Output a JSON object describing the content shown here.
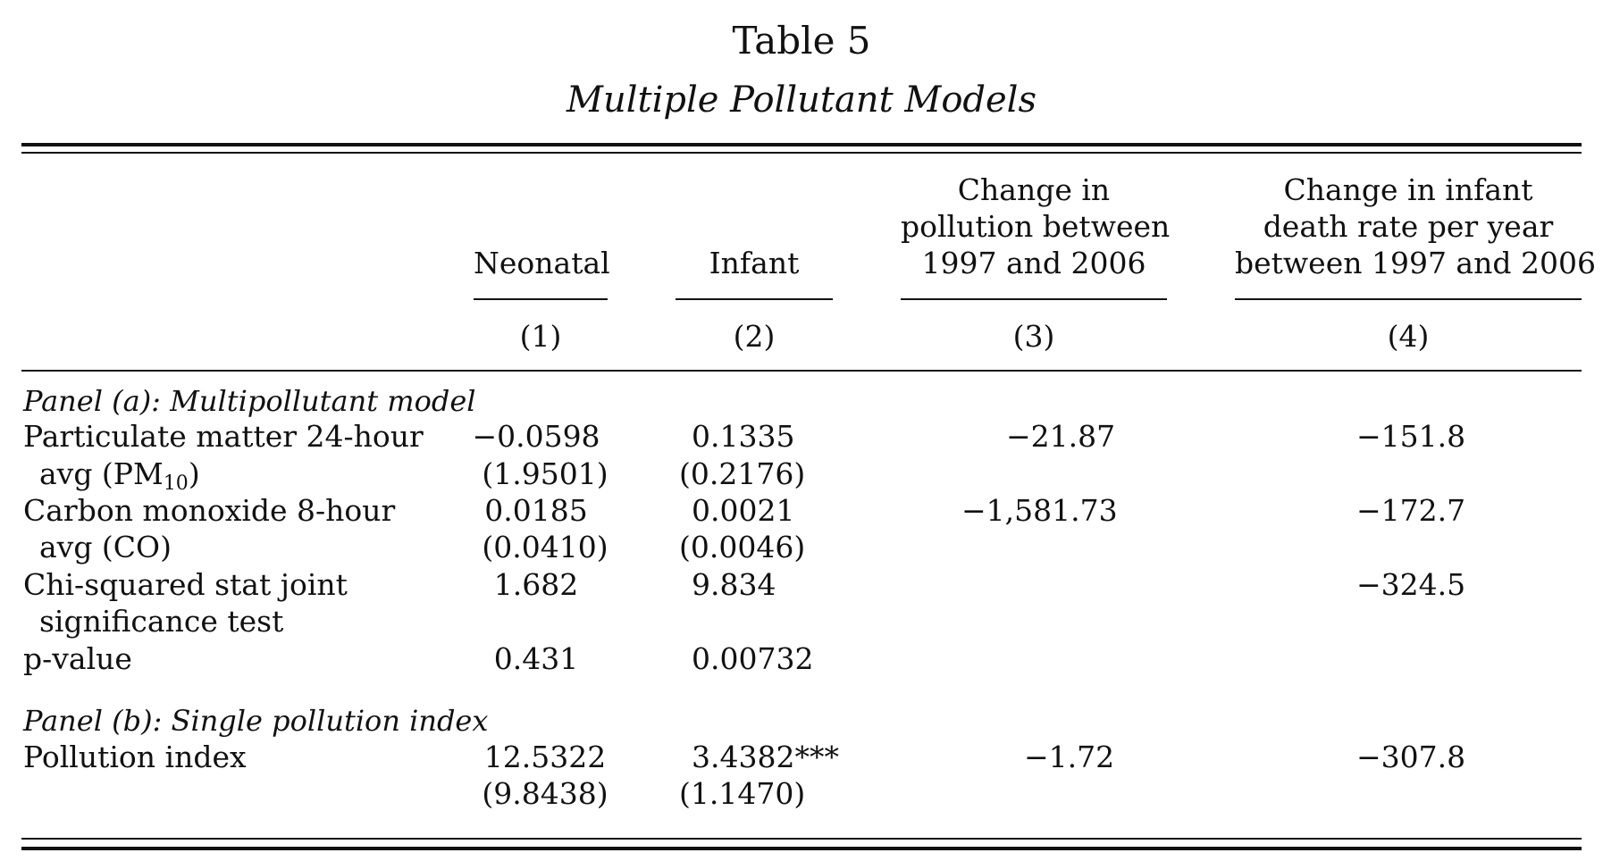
{
  "table": {
    "label": "Table 5",
    "caption": "Multiple Pollutant Models",
    "columns": [
      {
        "header_lines": [
          "Neonatal"
        ],
        "number": "(1)"
      },
      {
        "header_lines": [
          "Infant"
        ],
        "number": "(2)"
      },
      {
        "header_lines": [
          "Change in",
          "pollution between",
          "1997 and 2006"
        ],
        "number": "(3)"
      },
      {
        "header_lines": [
          "Change in infant",
          "death rate per year",
          "between 1997 and 2006"
        ],
        "number": "(4)"
      }
    ],
    "panel_a": {
      "label": "Panel (a): Multipollutant model",
      "rows": [
        {
          "label_line1": "Particulate matter 24-hour",
          "label_line2_pre": "avg (PM",
          "label_line2_sub": "10",
          "label_line2_post": ")",
          "col1": "−0.0598",
          "col1_se": "(1.9501)",
          "col2": "0.1335",
          "col2_se": "(0.2176)",
          "col3": "−21.87",
          "col4": "−151.8"
        },
        {
          "label_line1": "Carbon monoxide 8-hour",
          "label_line2": "avg (CO)",
          "col1": "0.0185",
          "col1_se": "(0.0410)",
          "col2": "0.0021",
          "col2_se": "(0.0046)",
          "col3": "−1,581.73",
          "col4": "−172.7"
        },
        {
          "label_line1": "Chi-squared stat joint",
          "label_line2": "significance test",
          "col1": "1.682",
          "col2": "9.834",
          "col4": "−324.5"
        },
        {
          "label_line1": "p-value",
          "col1": "0.431",
          "col2": "0.00732"
        }
      ]
    },
    "panel_b": {
      "label": "Panel (b): Single pollution index",
      "rows": [
        {
          "label_line1": "Pollution index",
          "col1": "12.5322",
          "col1_se": "(9.8438)",
          "col2": "3.4382***",
          "col2_se": "(1.1470)",
          "col3": "−1.72",
          "col4": "−307.8"
        }
      ]
    }
  }
}
